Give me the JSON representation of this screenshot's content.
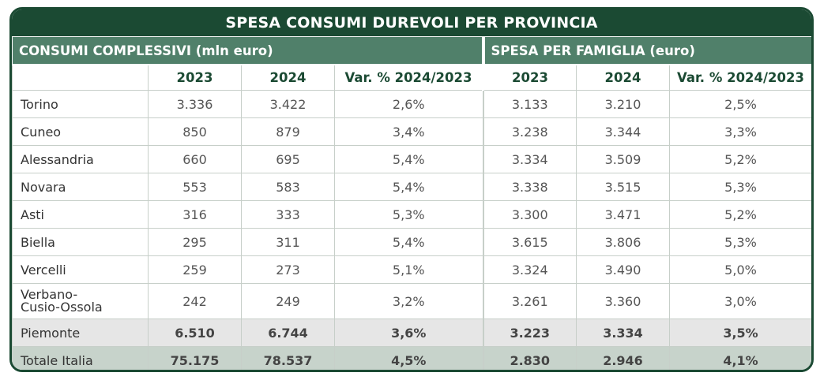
{
  "title": "SPESA CONSUMI DUREVOLI PER PROVINCIA",
  "sections": {
    "left": "CONSUMI COMPLESSIVI (mln euro)",
    "right": "SPESA PER FAMIGLIA (euro)"
  },
  "columns": [
    "2023",
    "2024",
    "Var. % 2024/2023",
    "2023",
    "2024",
    "Var. % 2024/2023"
  ],
  "rows": [
    {
      "name": "Torino",
      "values": [
        "3.336",
        "3.422",
        "2,6%",
        "3.133",
        "3.210",
        "2,5%"
      ]
    },
    {
      "name": "Cuneo",
      "values": [
        "850",
        "879",
        "3,4%",
        "3.238",
        "3.344",
        "3,3%"
      ]
    },
    {
      "name": "Alessandria",
      "values": [
        "660",
        "695",
        "5,4%",
        "3.334",
        "3.509",
        "5,2%"
      ]
    },
    {
      "name": "Novara",
      "values": [
        "553",
        "583",
        "5,4%",
        "3.338",
        "3.515",
        "5,3%"
      ]
    },
    {
      "name": "Asti",
      "values": [
        "316",
        "333",
        "5,3%",
        "3.300",
        "3.471",
        "5,2%"
      ]
    },
    {
      "name": "Biella",
      "values": [
        "295",
        "311",
        "5,4%",
        "3.615",
        "3.806",
        "5,3%"
      ]
    },
    {
      "name": "Vercelli",
      "values": [
        "259",
        "273",
        "5,1%",
        "3.324",
        "3.490",
        "5,0%"
      ]
    },
    {
      "name": "Verbano-Cusio-Ossola",
      "name_line1": "Verbano-",
      "name_line2": "Cusio-Ossola",
      "values": [
        "242",
        "249",
        "3,2%",
        "3.261",
        "3.360",
        "3,0%"
      ]
    }
  ],
  "totals": [
    {
      "name": "Piemonte",
      "values": [
        "6.510",
        "6.744",
        "3,6%",
        "3.223",
        "3.334",
        "3,5%"
      ]
    },
    {
      "name": "Totale Italia",
      "values": [
        "75.175",
        "78.537",
        "4,5%",
        "2.830",
        "2.946",
        "4,1%"
      ]
    }
  ],
  "colors": {
    "dark_green": "#1b4a33",
    "mid_green": "#50806a",
    "total_gray": "#e6e6e6",
    "total_green": "#c7d3cb"
  }
}
